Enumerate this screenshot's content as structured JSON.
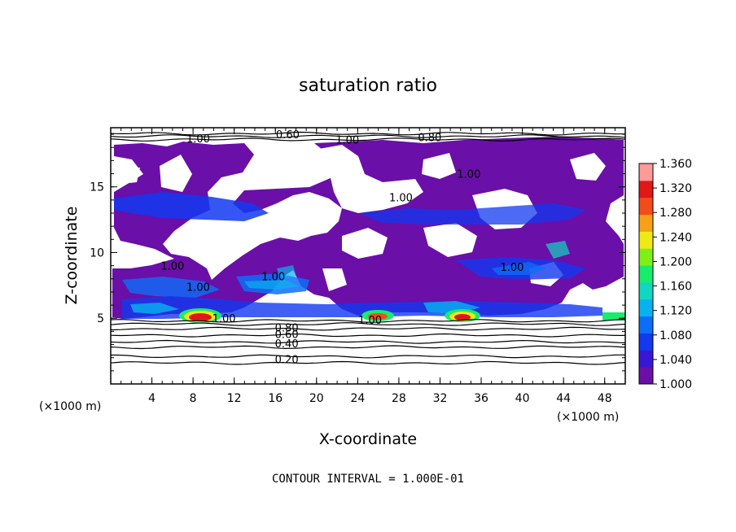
{
  "chart_data": {
    "type": "heatmap",
    "title": "saturation ratio",
    "xlabel": "X-coordinate",
    "ylabel": "Z-coordinate",
    "x_unit": "(×1000 m)",
    "x_unit_right": "(×1000 m)",
    "xlim": [
      0,
      50
    ],
    "ylim": [
      0,
      19.5
    ],
    "xticks": [
      4,
      8,
      12,
      16,
      20,
      24,
      28,
      32,
      36,
      40,
      44,
      48
    ],
    "yticks": [
      5,
      10,
      15
    ],
    "colorbar": {
      "min": 1.0,
      "max": 1.36,
      "ticks": [
        "1.360",
        "1.320",
        "1.280",
        "1.240",
        "1.200",
        "1.160",
        "1.120",
        "1.080",
        "1.040",
        "1.000"
      ],
      "colors": [
        "#6a0fa8",
        "#3a17d4",
        "#1238f0",
        "#0c6ef8",
        "#08b2f0",
        "#10d8c0",
        "#18ec6c",
        "#7ef018",
        "#f0ea14",
        "#f8a018",
        "#f24c1c",
        "#e01818",
        "#ff9a9a"
      ]
    },
    "contour_labels": [
      {
        "x": 8.5,
        "z": 18.7,
        "text": "1.00"
      },
      {
        "x": 17.2,
        "z": 19.0,
        "text": "0.60"
      },
      {
        "x": 23.0,
        "z": 18.6,
        "text": "1.00"
      },
      {
        "x": 31.0,
        "z": 18.8,
        "text": "0.80"
      },
      {
        "x": 34.8,
        "z": 16.0,
        "text": "1.00"
      },
      {
        "x": 28.2,
        "z": 14.2,
        "text": "1.00"
      },
      {
        "x": 6.0,
        "z": 9.0,
        "text": "1.00"
      },
      {
        "x": 8.5,
        "z": 7.4,
        "text": "1.00"
      },
      {
        "x": 15.8,
        "z": 8.2,
        "text": "1.00"
      },
      {
        "x": 39.0,
        "z": 8.9,
        "text": "1.00"
      },
      {
        "x": 11.0,
        "z": 5.0,
        "text": "1.00"
      },
      {
        "x": 25.2,
        "z": 4.9,
        "text": "1.00"
      },
      {
        "x": 17.1,
        "z": 4.3,
        "text": "0.80"
      },
      {
        "x": 17.1,
        "z": 3.8,
        "text": "0.60"
      },
      {
        "x": 17.1,
        "z": 3.1,
        "text": "0.40"
      },
      {
        "x": 17.1,
        "z": 1.9,
        "text": "0.20"
      }
    ],
    "contour_lines_z": [
      1.6,
      2.1,
      2.8,
      3.2,
      3.7,
      4.2,
      4.55,
      4.8,
      18.6,
      18.85,
      19.05
    ]
  },
  "footer": {
    "contour_interval": "CONTOUR INTERVAL = 1.000E-01"
  }
}
